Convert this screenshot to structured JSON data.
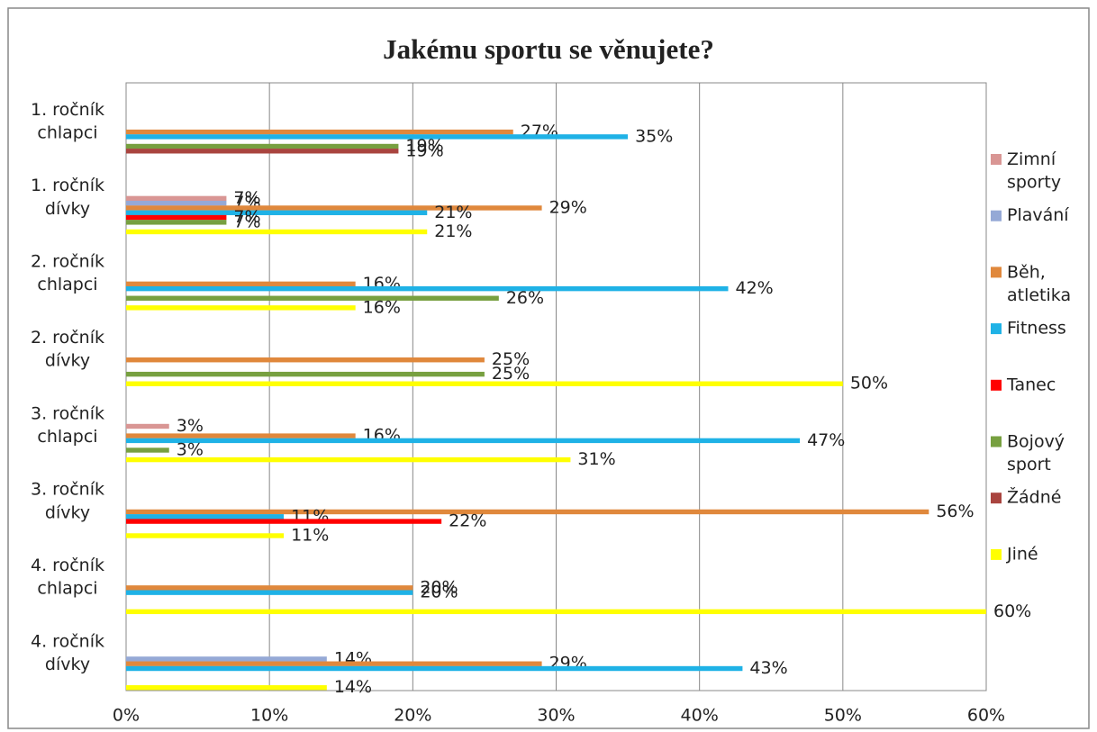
{
  "chart_data": {
    "type": "hbar",
    "title": "Jakému sportu se věnujete?",
    "categories": [
      "1. ročník chlapci",
      "1. ročník dívky",
      "2. ročník chlapci",
      "2. ročník dívky",
      "3. ročník chlapci",
      "3. ročník dívky",
      "4. ročník chlapci",
      "4. ročník dívky"
    ],
    "series": [
      {
        "name": "Zimní sporty",
        "color": "#d99694",
        "values": [
          null,
          7,
          null,
          null,
          3,
          null,
          null,
          null
        ],
        "value_labels": [
          null,
          "7%",
          null,
          null,
          "3%",
          null,
          null,
          null
        ]
      },
      {
        "name": "Plavání",
        "color": "#95a9d6",
        "values": [
          null,
          7,
          null,
          null,
          null,
          null,
          null,
          14
        ],
        "value_labels": [
          null,
          "7%",
          null,
          null,
          null,
          null,
          null,
          "14%"
        ]
      },
      {
        "name": "Běh, atletika",
        "color": "#e0883c",
        "values": [
          27,
          29,
          16,
          25,
          16,
          56,
          20,
          29
        ],
        "value_labels": [
          "27%",
          "29%",
          "16%",
          "25%",
          "16%",
          "56%",
          "20%",
          "29%"
        ]
      },
      {
        "name": "Fitness",
        "color": "#1fb2e6",
        "values": [
          35,
          21,
          42,
          null,
          47,
          11,
          20,
          43
        ],
        "value_labels": [
          "35%",
          "21%",
          "42%",
          null,
          "47%",
          "11%",
          "20%",
          "43%"
        ]
      },
      {
        "name": "Tanec",
        "color": "#ff0000",
        "values": [
          null,
          7,
          null,
          null,
          null,
          22,
          null,
          null
        ],
        "value_labels": [
          null,
          "7%",
          null,
          null,
          null,
          "22%",
          null,
          null
        ]
      },
      {
        "name": "Bojový sport",
        "color": "#77a040",
        "values": [
          19,
          7,
          26,
          25,
          3,
          null,
          null,
          null
        ],
        "value_labels": [
          "19%",
          "7%",
          "26%",
          "25%",
          "3%",
          null,
          null,
          null
        ]
      },
      {
        "name": "Žádné",
        "color": "#a9443f",
        "values": [
          19,
          null,
          null,
          null,
          null,
          null,
          null,
          null
        ],
        "value_labels": [
          "19%",
          null,
          null,
          null,
          null,
          null,
          null,
          null
        ]
      },
      {
        "name": "Jiné",
        "color": "#ffff00",
        "values": [
          null,
          21,
          16,
          50,
          31,
          11,
          60,
          14
        ],
        "value_labels": [
          null,
          "21%",
          "16%",
          "50%",
          "31%",
          "11%",
          "60%",
          "14%"
        ]
      }
    ],
    "xlim": [
      0,
      60
    ],
    "xticks": [
      {
        "value": 0,
        "label": "0%"
      },
      {
        "value": 10,
        "label": "10%"
      },
      {
        "value": 20,
        "label": "20%"
      },
      {
        "value": 30,
        "label": "30%"
      },
      {
        "value": 40,
        "label": "40%"
      },
      {
        "value": 50,
        "label": "50%"
      },
      {
        "value": 60,
        "label": "60%"
      }
    ],
    "grid": true,
    "legend": "right"
  }
}
